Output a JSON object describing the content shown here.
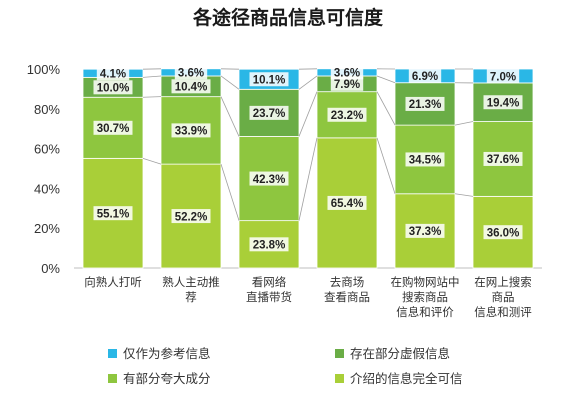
{
  "chart_data": {
    "type": "bar",
    "stacked": true,
    "title": "各途径商品信息可信度",
    "categories": [
      [
        "向熟人打听"
      ],
      [
        "熟人主动推",
        "荐"
      ],
      [
        "看网络",
        "直播带货"
      ],
      [
        "去商场",
        "查看商品"
      ],
      [
        "在购物网站中",
        "搜索商品",
        "信息和评价"
      ],
      [
        "在网上搜索",
        "商品",
        "信息和测评"
      ]
    ],
    "series": [
      {
        "name": "介绍的信息完全可信",
        "color": "#a9cf38",
        "values": [
          55.1,
          52.2,
          23.8,
          65.4,
          37.3,
          36.0
        ]
      },
      {
        "name": "有部分夸大成分",
        "color": "#8ec63f",
        "values": [
          30.7,
          33.9,
          42.3,
          23.2,
          34.5,
          37.6
        ]
      },
      {
        "name": "存在部分虚假信息",
        "color": "#6aad46",
        "values": [
          10.0,
          10.4,
          23.7,
          7.9,
          21.3,
          19.4
        ]
      },
      {
        "name": "仅作为参考信息",
        "color": "#2ab7e6",
        "values": [
          4.1,
          3.6,
          10.1,
          3.6,
          6.9,
          7.0
        ]
      }
    ],
    "y_ticks": [
      "0%",
      "20%",
      "40%",
      "60%",
      "80%",
      "100%"
    ],
    "ylim": [
      0,
      100
    ],
    "xlabel": "",
    "ylabel": "",
    "legend_position": "bottom",
    "legend_order": [
      "仅作为参考信息",
      "存在部分虚假信息",
      "有部分夸大成分",
      "介绍的信息完全可信"
    ],
    "series_lines": true
  }
}
